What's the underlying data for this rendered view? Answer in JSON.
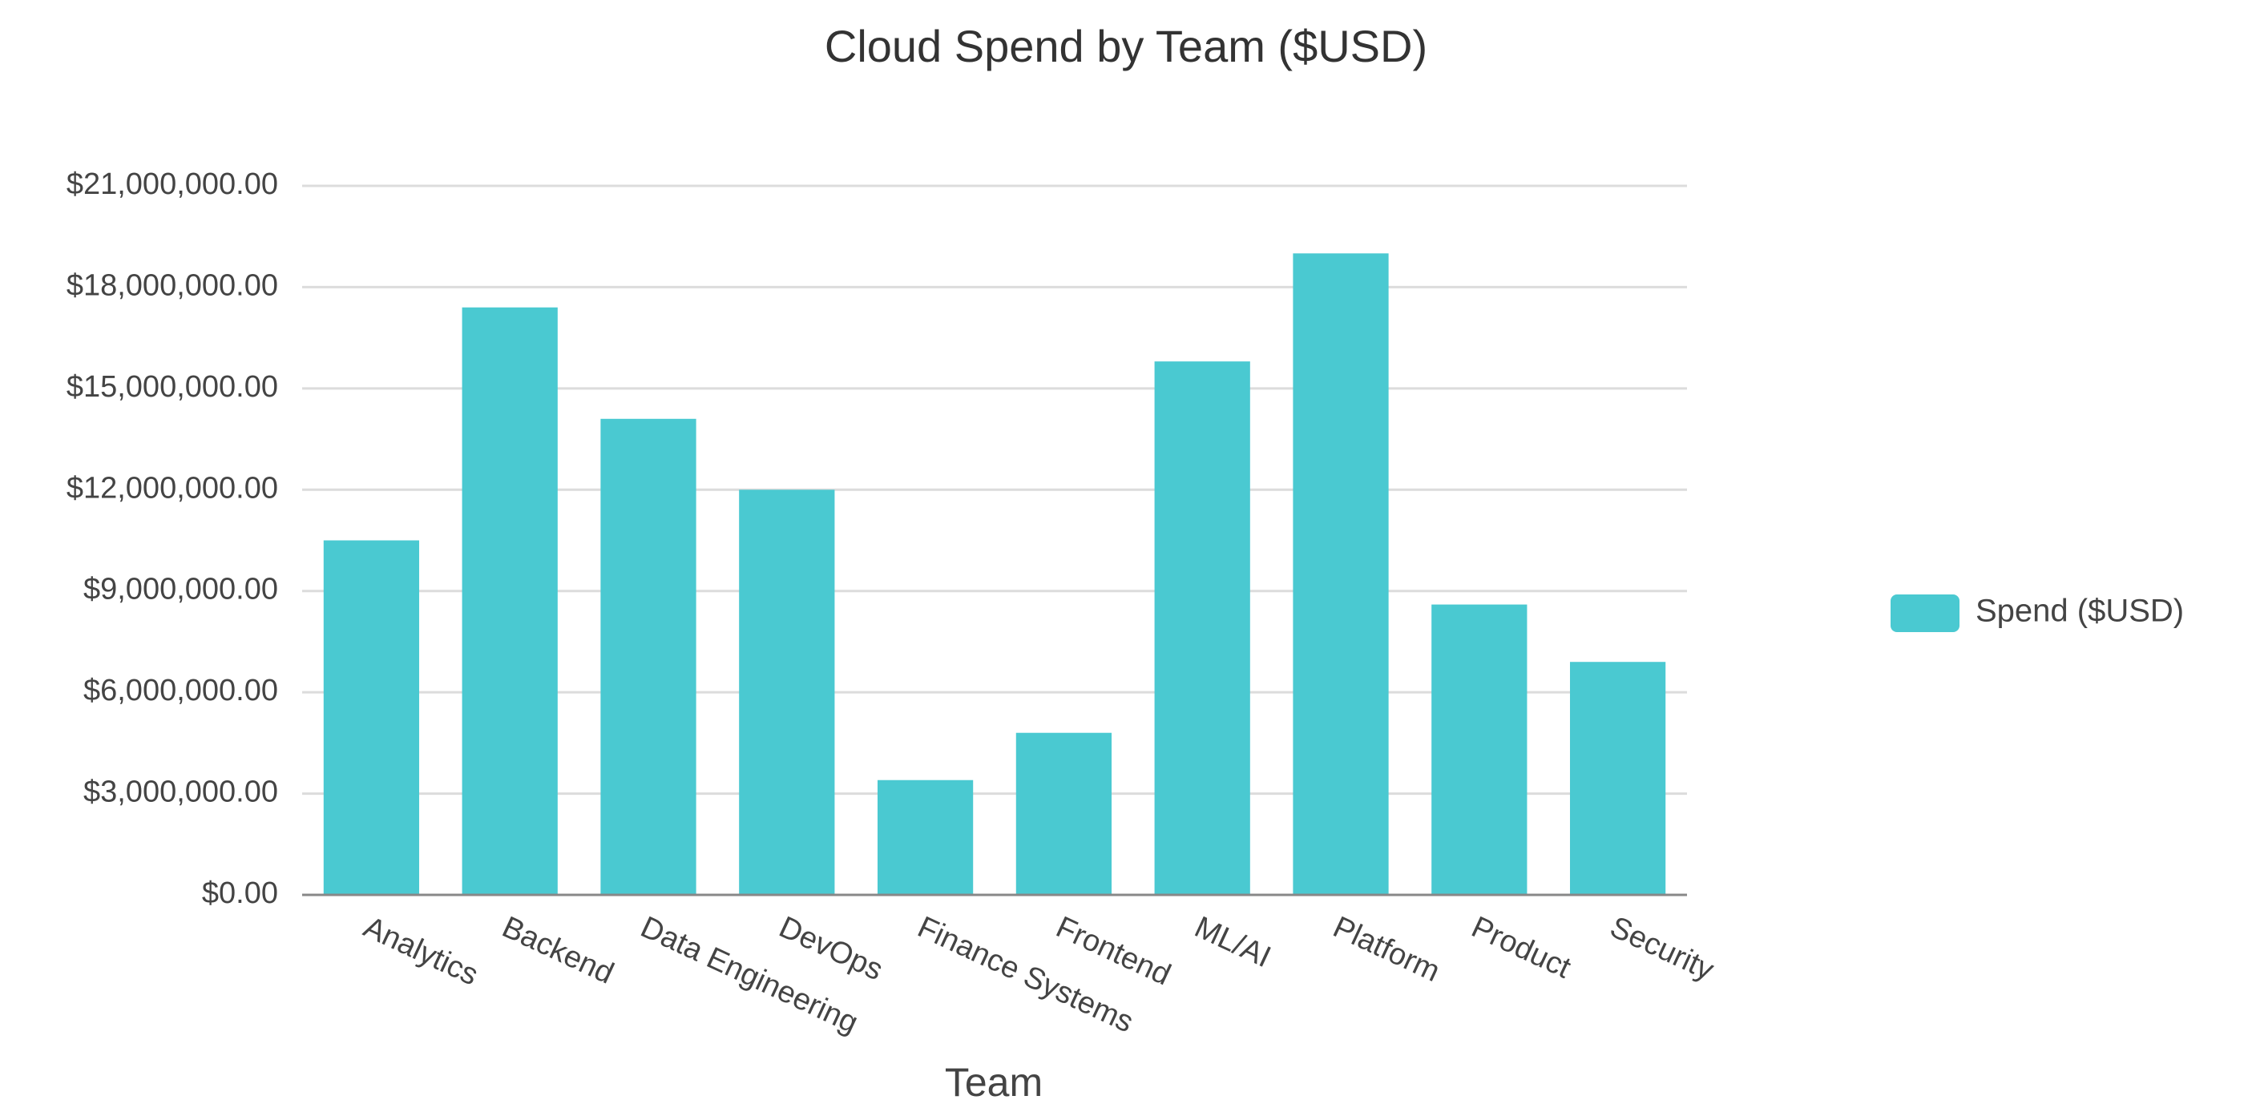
{
  "chart_data": {
    "type": "bar",
    "title": "Cloud Spend by Team ($USD)",
    "x_label": "Team",
    "categories": [
      "Analytics",
      "Backend",
      "Data Engineering",
      "DevOps",
      "Finance Systems",
      "Frontend",
      "ML/AI",
      "Platform",
      "Product",
      "Security"
    ],
    "series": [
      {
        "name": "Spend ($USD)",
        "color": "#4ac9d1",
        "values": [
          10500000,
          17400000,
          14100000,
          12000000,
          3400000,
          4800000,
          15800000,
          19000000,
          8600000,
          6900000
        ]
      }
    ],
    "ylim": [
      0,
      21000000
    ],
    "yticks": [
      {
        "value": 0,
        "label": "$0.00"
      },
      {
        "value": 3000000,
        "label": "$3,000,000.00"
      },
      {
        "value": 6000000,
        "label": "$6,000,000.00"
      },
      {
        "value": 9000000,
        "label": "$9,000,000.00"
      },
      {
        "value": 12000000,
        "label": "$12,000,000.00"
      },
      {
        "value": 15000000,
        "label": "$15,000,000.00"
      },
      {
        "value": 18000000,
        "label": "$18,000,000.00"
      },
      {
        "value": 21000000,
        "label": "$21,000,000.00"
      }
    ],
    "grid": true,
    "legend": "right"
  }
}
